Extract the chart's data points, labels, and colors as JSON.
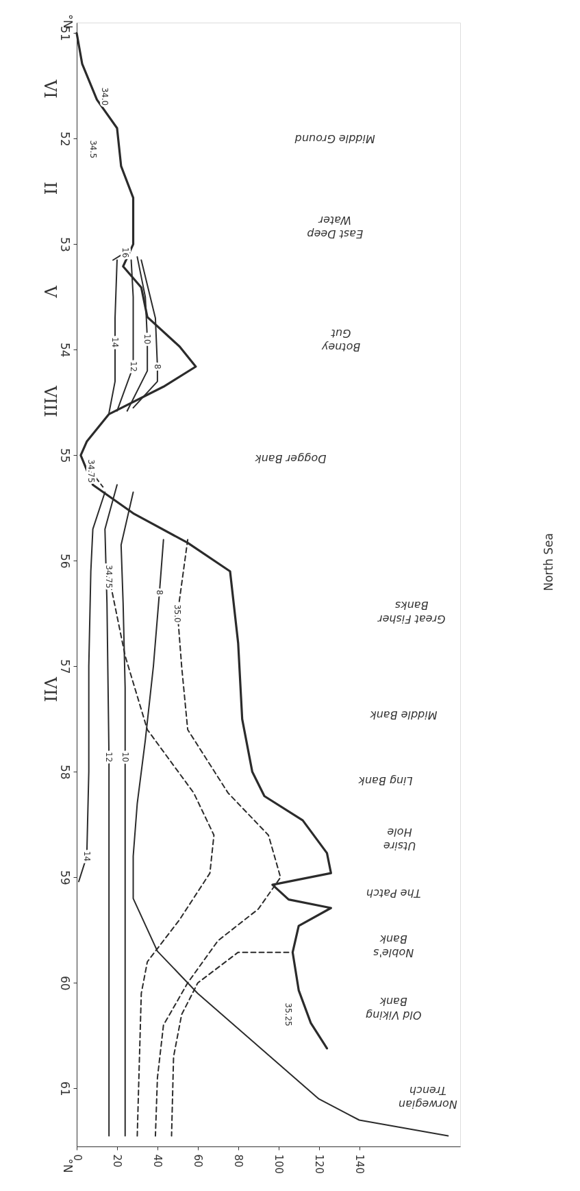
{
  "chart_data": {
    "type": "line",
    "xlim": [
      0,
      190
    ],
    "xticks": [
      0,
      20,
      40,
      60,
      80,
      100,
      120,
      140
    ],
    "ylim": [
      61.55,
      50.9
    ],
    "yticks": [
      51,
      52,
      53,
      54,
      55,
      56,
      57,
      58,
      59,
      60,
      61
    ],
    "ylabel": "°N",
    "grid": false,
    "series": [
      {
        "color": "#2b2b2b",
        "x": [
          0,
          2.7,
          10,
          20,
          22,
          28,
          28,
          23,
          32,
          35,
          51,
          59,
          43,
          16,
          5,
          2,
          8,
          28,
          55,
          76,
          80,
          82,
          87,
          93,
          112,
          124,
          126,
          97,
          105,
          126,
          110,
          107,
          110,
          116,
          124
        ],
        "values": [
          51.0,
          51.29,
          51.63,
          51.9,
          52.26,
          52.56,
          53.0,
          53.21,
          53.41,
          53.69,
          53.97,
          54.16,
          54.35,
          54.61,
          54.87,
          55.0,
          55.28,
          55.55,
          55.83,
          56.1,
          56.78,
          57.5,
          58.0,
          58.23,
          58.46,
          58.77,
          58.96,
          59.07,
          59.21,
          59.29,
          59.46,
          59.71,
          60.07,
          60.38,
          60.62
        ]
      },
      {
        "color": "#2b2b2b",
        "x": [
          18,
          24
        ],
        "values": [
          53.15,
          53.08
        ]
      },
      {
        "color": "#2b2b2b",
        "x": [
          20,
          19,
          19,
          19,
          16
        ],
        "values": [
          53.15,
          53.7,
          53.93,
          54.3,
          54.6
        ]
      },
      {
        "color": "#2b2b2b",
        "x": [
          27,
          28,
          28,
          20
        ],
        "values": [
          53.15,
          53.5,
          54.16,
          54.58
        ]
      },
      {
        "color": "#2b2b2b",
        "x": [
          30,
          34,
          35,
          35,
          25
        ],
        "values": [
          53.12,
          53.5,
          53.9,
          54.2,
          54.58
        ]
      },
      {
        "color": "#2b2b2b",
        "x": [
          32,
          39,
          40,
          40,
          28
        ],
        "values": [
          53.15,
          53.7,
          54.16,
          54.3,
          54.55
        ]
      },
      {
        "color": "#2b2b2b",
        "x": [
          14,
          8,
          7,
          6,
          6,
          5,
          1
        ],
        "values": [
          55.35,
          55.7,
          56.1,
          57.0,
          58.0,
          58.8,
          59.04
        ]
      },
      {
        "color": "#2b2b2b",
        "x": [
          20,
          14,
          15,
          16,
          16,
          16
        ],
        "values": [
          55.28,
          55.7,
          56.4,
          57.86,
          59.3,
          61.45
        ]
      },
      {
        "color": "#2b2b2b",
        "x": [
          28,
          22,
          23,
          24,
          24,
          24,
          24
        ],
        "values": [
          55.35,
          55.85,
          56.4,
          57.2,
          57.86,
          58.5,
          61.45
        ]
      },
      {
        "color": "#2b2b2b",
        "x": [
          43,
          41,
          38,
          34,
          30,
          28,
          28,
          40,
          60,
          90,
          120,
          140,
          184
        ],
        "values": [
          55.8,
          56.3,
          57.0,
          57.7,
          58.3,
          58.8,
          59.2,
          59.7,
          60.1,
          60.6,
          61.1,
          61.3,
          61.45
        ]
      },
      {
        "color": "#2b2b2b",
        "line_style": "dashed",
        "x": [
          55,
          50,
          52,
          55,
          75,
          95,
          101,
          90,
          70,
          55,
          43,
          40,
          39
        ],
        "values": [
          55.8,
          56.5,
          57.0,
          57.6,
          58.2,
          58.6,
          59.0,
          59.3,
          59.6,
          60.0,
          60.4,
          60.9,
          61.45
        ]
      },
      {
        "color": "#2b2b2b",
        "line_style": "dashed",
        "x": [
          16,
          24,
          35,
          58,
          68,
          66,
          51,
          35,
          32,
          30
        ],
        "values": [
          56.15,
          56.9,
          57.6,
          58.2,
          58.6,
          58.96,
          59.4,
          59.8,
          60.1,
          61.45
        ]
      },
      {
        "color": "#2b2b2b",
        "line_style": "dashed",
        "x": [
          105,
          80,
          60,
          52,
          48,
          47
        ],
        "values": [
          59.71,
          59.71,
          60.0,
          60.3,
          60.7,
          61.45
        ]
      },
      {
        "color": "#2b2b2b",
        "line_style": "dashed",
        "x": [
          7,
          13
        ],
        "values": [
          55.15,
          55.3
        ]
      }
    ],
    "annotations": [
      {
        "text": "16",
        "x": 24,
        "y": 53.08
      },
      {
        "text": "14",
        "x": 19,
        "y": 53.93
      },
      {
        "text": "12",
        "x": 28,
        "y": 54.16
      },
      {
        "text": "10",
        "x": 35,
        "y": 53.9
      },
      {
        "text": "8",
        "x": 40,
        "y": 54.16
      },
      {
        "text": "14",
        "x": 5,
        "y": 58.8
      },
      {
        "text": "12",
        "x": 16,
        "y": 57.86
      },
      {
        "text": "10",
        "x": 24,
        "y": 57.86
      },
      {
        "text": "8",
        "x": 41,
        "y": 56.3
      },
      {
        "text": "35.0",
        "x": 50,
        "y": 56.5
      },
      {
        "text": "34.75",
        "x": 16,
        "y": 56.15
      },
      {
        "text": "34.75",
        "x": 7,
        "y": 55.15
      },
      "35.25",
      "34.5",
      "34.0",
      "VI",
      "II",
      "V",
      "VIII",
      "VII",
      "Middle Ground",
      "East Deep\nWater",
      "Botney\nGut",
      "Dogger  Bank",
      "Great  Fisher\nBanks",
      "Middle  Bank",
      "Ling Bank",
      "Utsire\nHole",
      "The Patch",
      "Noble's\nBank",
      "Old  Viking\nBank",
      "Norwegian\nTrench",
      "North Sea"
    ]
  }
}
